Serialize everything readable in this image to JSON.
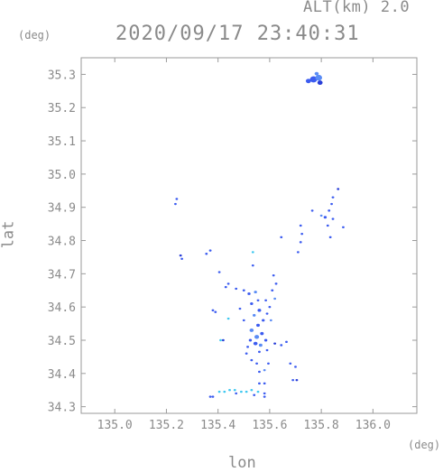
{
  "header": {
    "alt_label": "ALT(km) 2.0",
    "datetime": "2020/09/17 23:40:31"
  },
  "units": {
    "y_unit": "(deg)",
    "x_unit": "(deg)"
  },
  "chart_data": {
    "type": "scatter",
    "title": "2020/09/17 23:40:31",
    "subtitle": "ALT(km) 2.0",
    "xlabel": "lon",
    "ylabel": "lat",
    "xlim": [
      134.87,
      136.17
    ],
    "ylim": [
      34.28,
      35.35
    ],
    "x_ticks": [
      "135.0",
      "135.2",
      "135.4",
      "135.6",
      "135.8",
      "136.0"
    ],
    "x_tick_values": [
      135.0,
      135.2,
      135.4,
      135.6,
      135.8,
      136.0
    ],
    "y_ticks": [
      "34.3",
      "34.4",
      "34.5",
      "34.6",
      "34.7",
      "34.8",
      "34.9",
      "35.0",
      "35.1",
      "35.2",
      "35.3"
    ],
    "y_tick_values": [
      34.3,
      34.4,
      34.5,
      34.6,
      34.7,
      34.8,
      34.9,
      35.0,
      35.1,
      35.2,
      35.3
    ],
    "grid": false,
    "colors": {
      "main": "#3c5cf0",
      "dark": "#2a3fd8",
      "light": "#5a8cf5",
      "cyan": "#3fc8f0",
      "axis": "#9a9a9a"
    },
    "points": [
      {
        "x": 135.77,
        "y": 35.285,
        "r": 0.014,
        "c": "main"
      },
      {
        "x": 135.79,
        "y": 35.29,
        "r": 0.013,
        "c": "light"
      },
      {
        "x": 135.75,
        "y": 35.28,
        "r": 0.01,
        "c": "main"
      },
      {
        "x": 135.795,
        "y": 35.275,
        "r": 0.01,
        "c": "dark"
      },
      {
        "x": 135.782,
        "y": 35.302,
        "r": 0.008,
        "c": "light"
      },
      {
        "x": 135.24,
        "y": 34.925,
        "r": 0.003,
        "c": "main"
      },
      {
        "x": 135.235,
        "y": 34.91,
        "r": 0.003,
        "c": "main"
      },
      {
        "x": 135.865,
        "y": 34.955,
        "r": 0.004,
        "c": "dark"
      },
      {
        "x": 135.845,
        "y": 34.93,
        "r": 0.005,
        "c": "main"
      },
      {
        "x": 135.84,
        "y": 34.91,
        "r": 0.004,
        "c": "main"
      },
      {
        "x": 135.83,
        "y": 34.89,
        "r": 0.005,
        "c": "main"
      },
      {
        "x": 135.815,
        "y": 34.87,
        "r": 0.006,
        "c": "main"
      },
      {
        "x": 135.8,
        "y": 34.875,
        "r": 0.004,
        "c": "light"
      },
      {
        "x": 135.845,
        "y": 34.865,
        "r": 0.004,
        "c": "main"
      },
      {
        "x": 135.825,
        "y": 34.845,
        "r": 0.003,
        "c": "main"
      },
      {
        "x": 135.765,
        "y": 34.89,
        "r": 0.003,
        "c": "main"
      },
      {
        "x": 135.885,
        "y": 34.84,
        "r": 0.003,
        "c": "main"
      },
      {
        "x": 135.835,
        "y": 34.81,
        "r": 0.003,
        "c": "main"
      },
      {
        "x": 135.72,
        "y": 34.845,
        "r": 0.004,
        "c": "main"
      },
      {
        "x": 135.725,
        "y": 34.82,
        "r": 0.003,
        "c": "main"
      },
      {
        "x": 135.72,
        "y": 34.795,
        "r": 0.003,
        "c": "main"
      },
      {
        "x": 135.71,
        "y": 34.765,
        "r": 0.003,
        "c": "main"
      },
      {
        "x": 135.645,
        "y": 34.81,
        "r": 0.002,
        "c": "main"
      },
      {
        "x": 135.37,
        "y": 34.77,
        "r": 0.004,
        "c": "main"
      },
      {
        "x": 135.355,
        "y": 34.76,
        "r": 0.002,
        "c": "main"
      },
      {
        "x": 135.255,
        "y": 34.755,
        "r": 0.005,
        "c": "dark"
      },
      {
        "x": 135.26,
        "y": 34.745,
        "r": 0.003,
        "c": "main"
      },
      {
        "x": 135.535,
        "y": 34.765,
        "r": 0.003,
        "c": "cyan"
      },
      {
        "x": 135.535,
        "y": 34.725,
        "r": 0.003,
        "c": "main"
      },
      {
        "x": 135.405,
        "y": 34.705,
        "r": 0.002,
        "c": "main"
      },
      {
        "x": 135.615,
        "y": 34.695,
        "r": 0.004,
        "c": "main"
      },
      {
        "x": 135.625,
        "y": 34.67,
        "r": 0.005,
        "c": "main"
      },
      {
        "x": 135.61,
        "y": 34.65,
        "r": 0.005,
        "c": "main"
      },
      {
        "x": 135.62,
        "y": 34.625,
        "r": 0.004,
        "c": "light"
      },
      {
        "x": 135.6,
        "y": 34.6,
        "r": 0.005,
        "c": "main"
      },
      {
        "x": 135.585,
        "y": 34.62,
        "r": 0.004,
        "c": "main"
      },
      {
        "x": 135.59,
        "y": 34.58,
        "r": 0.005,
        "c": "main"
      },
      {
        "x": 135.605,
        "y": 34.56,
        "r": 0.004,
        "c": "light"
      },
      {
        "x": 135.43,
        "y": 34.66,
        "r": 0.004,
        "c": "main"
      },
      {
        "x": 135.44,
        "y": 34.67,
        "r": 0.004,
        "c": "main"
      },
      {
        "x": 135.47,
        "y": 34.655,
        "r": 0.004,
        "c": "main"
      },
      {
        "x": 135.5,
        "y": 34.65,
        "r": 0.005,
        "c": "main"
      },
      {
        "x": 135.52,
        "y": 34.64,
        "r": 0.006,
        "c": "main"
      },
      {
        "x": 135.545,
        "y": 34.645,
        "r": 0.006,
        "c": "light"
      },
      {
        "x": 135.555,
        "y": 34.62,
        "r": 0.005,
        "c": "main"
      },
      {
        "x": 135.53,
        "y": 34.61,
        "r": 0.006,
        "c": "main"
      },
      {
        "x": 135.56,
        "y": 34.59,
        "r": 0.007,
        "c": "main"
      },
      {
        "x": 135.54,
        "y": 34.575,
        "r": 0.006,
        "c": "light"
      },
      {
        "x": 135.575,
        "y": 34.56,
        "r": 0.006,
        "c": "main"
      },
      {
        "x": 135.555,
        "y": 34.545,
        "r": 0.007,
        "c": "main"
      },
      {
        "x": 135.53,
        "y": 34.53,
        "r": 0.008,
        "c": "light"
      },
      {
        "x": 135.55,
        "y": 34.51,
        "r": 0.009,
        "c": "light"
      },
      {
        "x": 135.57,
        "y": 34.52,
        "r": 0.007,
        "c": "main"
      },
      {
        "x": 135.545,
        "y": 34.49,
        "r": 0.008,
        "c": "main"
      },
      {
        "x": 135.565,
        "y": 34.485,
        "r": 0.007,
        "c": "light"
      },
      {
        "x": 135.585,
        "y": 34.5,
        "r": 0.006,
        "c": "main"
      },
      {
        "x": 135.525,
        "y": 34.5,
        "r": 0.006,
        "c": "main"
      },
      {
        "x": 135.515,
        "y": 34.48,
        "r": 0.005,
        "c": "main"
      },
      {
        "x": 135.56,
        "y": 34.465,
        "r": 0.005,
        "c": "main"
      },
      {
        "x": 135.59,
        "y": 34.47,
        "r": 0.004,
        "c": "main"
      },
      {
        "x": 135.62,
        "y": 34.49,
        "r": 0.005,
        "c": "dark"
      },
      {
        "x": 135.645,
        "y": 34.485,
        "r": 0.005,
        "c": "main"
      },
      {
        "x": 135.665,
        "y": 34.495,
        "r": 0.003,
        "c": "main"
      },
      {
        "x": 135.5,
        "y": 34.56,
        "r": 0.004,
        "c": "main"
      },
      {
        "x": 135.485,
        "y": 34.595,
        "r": 0.003,
        "c": "main"
      },
      {
        "x": 135.51,
        "y": 34.46,
        "r": 0.003,
        "c": "main"
      },
      {
        "x": 135.53,
        "y": 34.44,
        "r": 0.005,
        "c": "main"
      },
      {
        "x": 135.55,
        "y": 34.43,
        "r": 0.004,
        "c": "main"
      },
      {
        "x": 135.595,
        "y": 34.43,
        "r": 0.004,
        "c": "main"
      },
      {
        "x": 135.58,
        "y": 34.41,
        "r": 0.004,
        "c": "light"
      },
      {
        "x": 135.56,
        "y": 34.405,
        "r": 0.003,
        "c": "main"
      },
      {
        "x": 135.68,
        "y": 34.43,
        "r": 0.004,
        "c": "main"
      },
      {
        "x": 135.7,
        "y": 34.42,
        "r": 0.004,
        "c": "main"
      },
      {
        "x": 135.705,
        "y": 34.38,
        "r": 0.003,
        "c": "dark"
      },
      {
        "x": 135.69,
        "y": 34.38,
        "r": 0.002,
        "c": "main"
      },
      {
        "x": 135.41,
        "y": 34.5,
        "r": 0.004,
        "c": "cyan"
      },
      {
        "x": 135.42,
        "y": 34.5,
        "r": 0.003,
        "c": "dark"
      },
      {
        "x": 135.38,
        "y": 34.59,
        "r": 0.002,
        "c": "main"
      },
      {
        "x": 135.39,
        "y": 34.585,
        "r": 0.002,
        "c": "main"
      },
      {
        "x": 135.44,
        "y": 34.565,
        "r": 0.003,
        "c": "cyan"
      },
      {
        "x": 135.58,
        "y": 34.37,
        "r": 0.004,
        "c": "main"
      },
      {
        "x": 135.56,
        "y": 34.37,
        "r": 0.005,
        "c": "main"
      },
      {
        "x": 135.555,
        "y": 34.345,
        "r": 0.004,
        "c": "cyan"
      },
      {
        "x": 135.58,
        "y": 34.34,
        "r": 0.003,
        "c": "main"
      },
      {
        "x": 135.58,
        "y": 34.33,
        "r": 0.004,
        "c": "main"
      },
      {
        "x": 135.37,
        "y": 34.33,
        "r": 0.004,
        "c": "main"
      },
      {
        "x": 135.38,
        "y": 34.33,
        "r": 0.003,
        "c": "main"
      },
      {
        "x": 135.405,
        "y": 34.345,
        "r": 0.004,
        "c": "cyan"
      },
      {
        "x": 135.425,
        "y": 34.345,
        "r": 0.004,
        "c": "cyan"
      },
      {
        "x": 135.445,
        "y": 34.35,
        "r": 0.004,
        "c": "cyan"
      },
      {
        "x": 135.465,
        "y": 34.35,
        "r": 0.003,
        "c": "cyan"
      },
      {
        "x": 135.49,
        "y": 34.345,
        "r": 0.003,
        "c": "cyan"
      },
      {
        "x": 135.51,
        "y": 34.345,
        "r": 0.003,
        "c": "cyan"
      },
      {
        "x": 135.53,
        "y": 34.35,
        "r": 0.003,
        "c": "cyan"
      },
      {
        "x": 135.47,
        "y": 34.34,
        "r": 0.003,
        "c": "main"
      },
      {
        "x": 135.54,
        "y": 34.335,
        "r": 0.003,
        "c": "main"
      }
    ]
  }
}
